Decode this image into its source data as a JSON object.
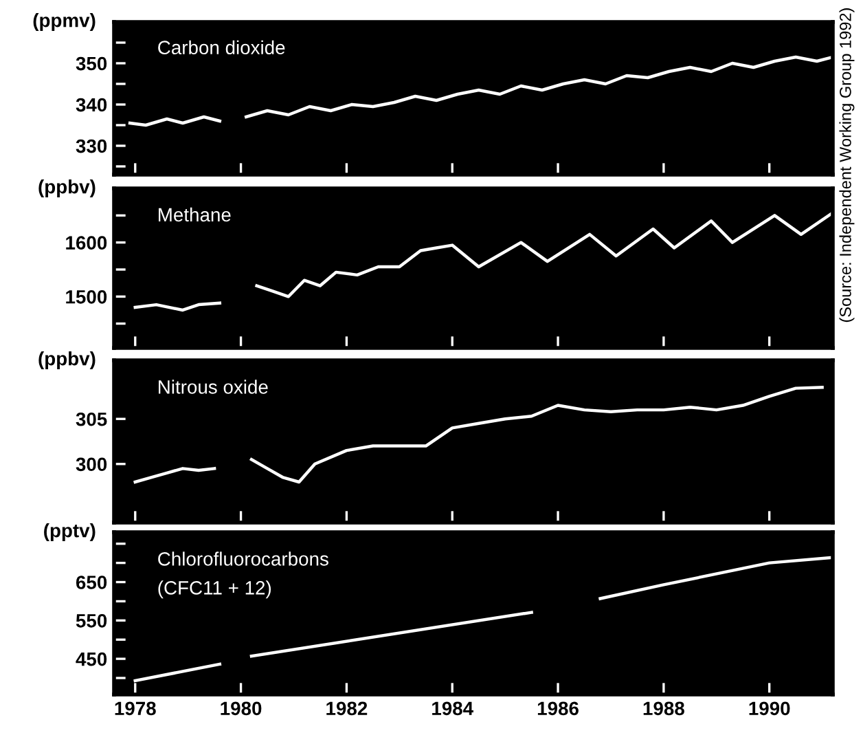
{
  "chart_data": [
    {
      "type": "line",
      "title": "Carbon dioxide",
      "ylabel": "(ppmv)",
      "xlim": [
        1977.6,
        1991.2
      ],
      "xticks": [
        1978,
        1980,
        1982,
        1984,
        1986,
        1988,
        1990
      ],
      "tick_labels": "y",
      "ylim": [
        323,
        360
      ],
      "yticks": [
        {
          "value": 325,
          "label": null
        },
        330,
        {
          "value": 335,
          "label": null
        },
        340,
        {
          "value": 345,
          "label": null
        },
        350,
        {
          "value": 355,
          "label": null
        }
      ],
      "annotations": [
        "(Source: Independent Working Group 1992)"
      ],
      "series": [
        {
          "color": "#ffffff",
          "x": [
            1977.9,
            1978.2,
            1978.6,
            1978.9,
            1979.3,
            1979.6,
            1979.8,
            1980.1,
            1980.5,
            1980.9,
            1981.3,
            1981.7,
            1982.1,
            1982.5,
            1982.9,
            1983.3,
            1983.7,
            1984.1,
            1984.5,
            1984.9,
            1985.3,
            1985.7,
            1986.1,
            1986.5,
            1986.9,
            1987.3,
            1987.7,
            1988.1,
            1988.5,
            1988.9,
            1989.3,
            1989.7,
            1990.1,
            1990.5,
            1990.9,
            1991.2
          ],
          "values": [
            335.5,
            335,
            336.5,
            335.5,
            337,
            336,
            null,
            337,
            338.5,
            337.5,
            339.5,
            338.5,
            340,
            339.5,
            340.5,
            342,
            341,
            342.5,
            343.5,
            342.5,
            344.5,
            343.5,
            345,
            346,
            345,
            347,
            346.5,
            348,
            349,
            348,
            350,
            349,
            350.5,
            351.5,
            350.5,
            351.5
          ]
        }
      ]
    },
    {
      "type": "line",
      "title": "Methane",
      "ylabel": "(ppbv)",
      "xlim": [
        1977.6,
        1991.2
      ],
      "xticks": [
        1978,
        1980,
        1982,
        1984,
        1986,
        1988,
        1990
      ],
      "tick_labels": "y",
      "ylim": [
        1405,
        1700
      ],
      "yticks": [
        {
          "value": 1450,
          "label": null
        },
        1500,
        {
          "value": 1550,
          "label": null
        },
        1600,
        {
          "value": 1650,
          "label": null
        }
      ],
      "series": [
        {
          "color": "#ffffff",
          "x": [
            1978.0,
            1978.4,
            1978.9,
            1979.2,
            1979.6,
            1979.9,
            1980.3,
            1980.6,
            1980.9,
            1981.2,
            1981.5,
            1981.8,
            1982.2,
            1982.6,
            1983.0,
            1983.4,
            1983.7,
            1984.0,
            1984.5,
            1985.3,
            1985.8,
            1986.6,
            1987.1,
            1987.8,
            1988.2,
            1988.9,
            1989.3,
            1990.1,
            1990.6,
            1991.2
          ],
          "values": [
            1480,
            1485,
            1475,
            1485,
            1488,
            null,
            1520,
            1510,
            1500,
            1530,
            1520,
            1545,
            1540,
            1555,
            1555,
            1585,
            1590,
            1595,
            1555,
            1600,
            1565,
            1615,
            1575,
            1625,
            1590,
            1640,
            1600,
            1650,
            1615,
            1655
          ]
        }
      ]
    },
    {
      "type": "line",
      "title": "Nitrous oxide",
      "ylabel": "(ppbv)",
      "xlim": [
        1977.6,
        1991.2
      ],
      "xticks": [
        1978,
        1980,
        1982,
        1984,
        1986,
        1988,
        1990
      ],
      "tick_labels": "y",
      "ylim": [
        293.5,
        311.5
      ],
      "yticks": [
        300,
        305
      ],
      "series": [
        {
          "color": "#ffffff",
          "x": [
            1978.0,
            1978.3,
            1978.6,
            1978.9,
            1979.2,
            1979.5,
            1979.9,
            1980.2,
            1980.5,
            1980.8,
            1981.1,
            1981.4,
            1982.0,
            1982.5,
            1983.0,
            1983.5,
            1984.0,
            1984.5,
            1985.0,
            1985.5,
            1986.0,
            1986.5,
            1987.0,
            1987.5,
            1988.0,
            1988.5,
            1989.0,
            1989.5,
            1990.0,
            1990.5,
            1991.0
          ],
          "values": [
            298,
            298.5,
            299,
            299.5,
            299.3,
            299.5,
            null,
            300.5,
            299.5,
            298.5,
            298,
            300,
            301.5,
            302,
            302,
            302,
            304,
            304.5,
            305,
            305.3,
            306.5,
            306,
            305.8,
            306,
            306,
            306.3,
            306,
            306.5,
            307.5,
            308.4,
            308.5
          ]
        }
      ]
    },
    {
      "type": "line",
      "title": "Chlorofluorocarbons\n(CFC11 + 12)",
      "ylabel": "(pptv)",
      "xlim": [
        1977.6,
        1991.2
      ],
      "xticks": [
        1978,
        1980,
        1982,
        1984,
        1986,
        1988,
        1990
      ],
      "ylim": [
        357,
        780
      ],
      "yticks": [
        {
          "value": 400,
          "label": null
        },
        450,
        {
          "value": 500,
          "label": null
        },
        550,
        {
          "value": 600,
          "label": null
        },
        650,
        {
          "value": 700,
          "label": null
        },
        {
          "value": 750,
          "label": null
        }
      ],
      "series": [
        {
          "color": "#ffffff",
          "x": [
            1978.0,
            1979.6,
            1979.9,
            1980.2,
            1985.5,
            1986.2,
            1986.8,
            1988.0,
            1990.0,
            1991.2
          ],
          "values": [
            393,
            436,
            null,
            457,
            571,
            null,
            607,
            643,
            700,
            714
          ]
        }
      ]
    }
  ]
}
